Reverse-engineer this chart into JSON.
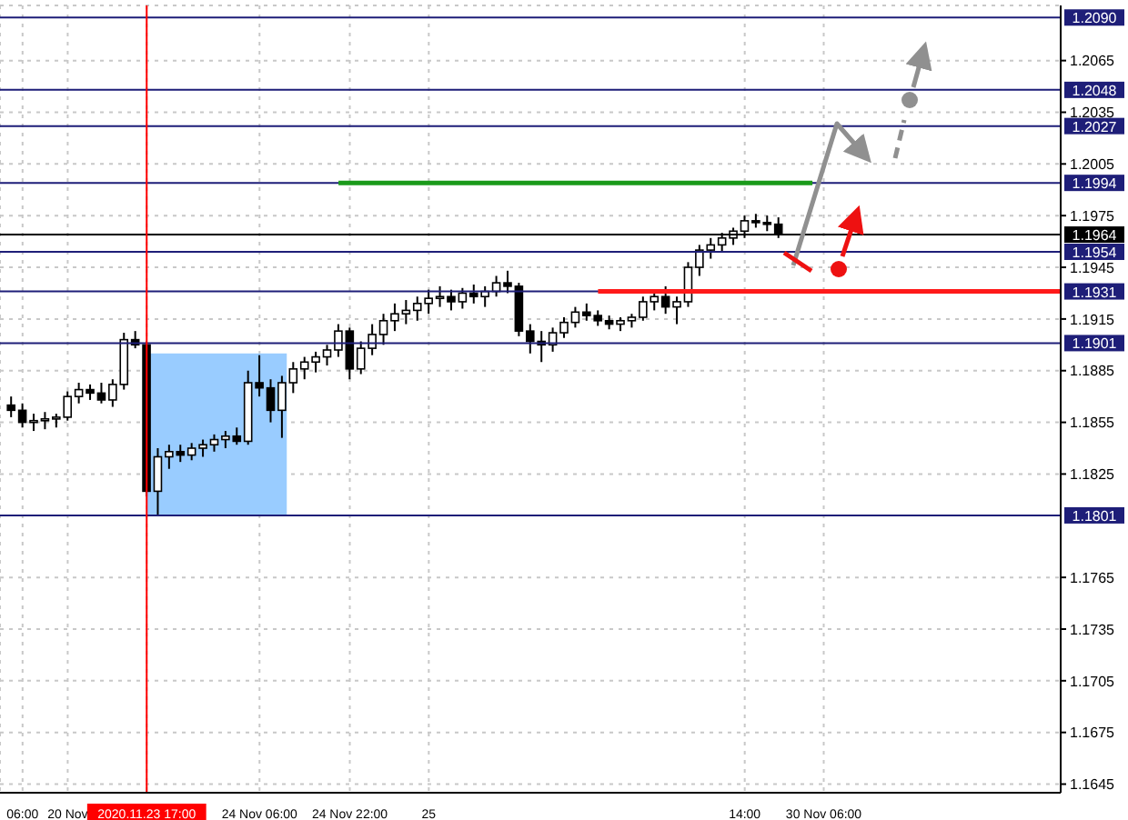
{
  "chart_data": {
    "type": "candlestick",
    "categories": [
      null,
      null,
      "06:00",
      null,
      null,
      null,
      "20 Nov",
      null,
      null,
      null,
      null,
      null,
      null,
      "2020.11.23 17:00",
      null,
      null,
      null,
      null,
      null,
      null,
      null,
      null,
      null,
      "24 Nov 06:00",
      null,
      null,
      null,
      null,
      null,
      null,
      null,
      "24 Nov 22:00",
      null,
      null,
      null,
      null,
      null,
      null,
      "25",
      null,
      null,
      null,
      null,
      null,
      null,
      null,
      null,
      null,
      null,
      null,
      null,
      null,
      null,
      null,
      null,
      null,
      null,
      null,
      null,
      null,
      null,
      null,
      null,
      null,
      null,
      null,
      "14:00",
      null,
      null,
      null,
      null,
      null,
      null,
      "30 Nov 06:00",
      null,
      null,
      null,
      null,
      null,
      null,
      null,
      null,
      null,
      null,
      null,
      null,
      null,
      null,
      null,
      null,
      null,
      null,
      null,
      null,
      null
    ],
    "series": [
      {
        "type": "candlestick",
        "color": "#000000",
        "ohlc": [
          null,
          [
            1.1865,
            1.187,
            1.1858,
            1.1862
          ],
          [
            1.1862,
            1.1866,
            1.1852,
            1.1855
          ],
          [
            1.1855,
            1.186,
            1.185,
            1.1856
          ],
          [
            1.1856,
            1.1861,
            1.1851,
            1.1857
          ],
          [
            1.1857,
            1.186,
            1.1852,
            1.1858
          ],
          [
            1.1858,
            1.1873,
            1.1856,
            1.187
          ],
          [
            1.187,
            1.1878,
            1.1866,
            1.1874
          ],
          [
            1.1874,
            1.1877,
            1.1868,
            1.1872
          ],
          [
            1.1872,
            1.1878,
            1.1866,
            1.1868
          ],
          [
            1.1868,
            1.188,
            1.1864,
            1.1877
          ],
          [
            1.1877,
            1.1907,
            1.1874,
            1.1903
          ],
          [
            1.1903,
            1.1908,
            1.1898,
            1.19
          ],
          [
            1.19,
            1.1902,
            1.1812,
            1.1815
          ],
          [
            1.1815,
            1.184,
            1.1801,
            1.1835
          ],
          [
            1.1835,
            1.1842,
            1.1828,
            1.1838
          ],
          [
            1.1838,
            1.1842,
            1.1832,
            1.1836
          ],
          [
            1.1836,
            1.1843,
            1.1833,
            1.184
          ],
          [
            1.184,
            1.1845,
            1.1835,
            1.1842
          ],
          [
            1.1842,
            1.1848,
            1.1838,
            1.1845
          ],
          [
            1.1845,
            1.185,
            1.184,
            1.1847
          ],
          [
            1.1847,
            1.1852,
            1.1842,
            1.1844
          ],
          [
            1.1844,
            1.1885,
            1.1842,
            1.1878
          ],
          [
            1.1878,
            1.1894,
            1.187,
            1.1875
          ],
          [
            1.1875,
            1.188,
            1.1855,
            1.1862
          ],
          [
            1.1862,
            1.1882,
            1.1846,
            1.1878
          ],
          [
            1.1878,
            1.189,
            1.1872,
            1.1886
          ],
          [
            1.1886,
            1.1893,
            1.188,
            1.189
          ],
          [
            1.189,
            1.1896,
            1.1884,
            1.1893
          ],
          [
            1.1893,
            1.19,
            1.1888,
            1.1897
          ],
          [
            1.1897,
            1.1912,
            1.1893,
            1.1908
          ],
          [
            1.1908,
            1.191,
            1.188,
            1.1886
          ],
          [
            1.1886,
            1.1902,
            1.1883,
            1.1898
          ],
          [
            1.1898,
            1.1912,
            1.1894,
            1.1906
          ],
          [
            1.1906,
            1.1918,
            1.19,
            1.1914
          ],
          [
            1.1914,
            1.1924,
            1.1908,
            1.1918
          ],
          [
            1.1918,
            1.1926,
            1.1912,
            1.192
          ],
          [
            1.192,
            1.1928,
            1.1914,
            1.1924
          ],
          [
            1.1924,
            1.1932,
            1.1918,
            1.1927
          ],
          [
            1.1927,
            1.1934,
            1.1922,
            1.1928
          ],
          [
            1.1928,
            1.1932,
            1.192,
            1.1925
          ],
          [
            1.1925,
            1.1933,
            1.1921,
            1.193
          ],
          [
            1.193,
            1.1935,
            1.1924,
            1.1928
          ],
          [
            1.1928,
            1.1934,
            1.1922,
            1.1931
          ],
          [
            1.1931,
            1.194,
            1.1928,
            1.1936
          ],
          [
            1.1936,
            1.1943,
            1.193,
            1.1934
          ],
          [
            1.1934,
            1.1936,
            1.1905,
            1.1908
          ],
          [
            1.1908,
            1.1912,
            1.1895,
            1.1902
          ],
          [
            1.1902,
            1.1908,
            1.189,
            1.19
          ],
          [
            1.19,
            1.191,
            1.1896,
            1.1907
          ],
          [
            1.1907,
            1.1916,
            1.1904,
            1.1913
          ],
          [
            1.1913,
            1.1922,
            1.191,
            1.1919
          ],
          [
            1.1919,
            1.1924,
            1.1914,
            1.1917
          ],
          [
            1.1917,
            1.192,
            1.1911,
            1.1914
          ],
          [
            1.1914,
            1.1917,
            1.1909,
            1.1912
          ],
          [
            1.1912,
            1.1916,
            1.1908,
            1.1914
          ],
          [
            1.1914,
            1.1918,
            1.191,
            1.1916
          ],
          [
            1.1916,
            1.1928,
            1.1914,
            1.1925
          ],
          [
            1.1925,
            1.1932,
            1.192,
            1.1928
          ],
          [
            1.1928,
            1.1934,
            1.1918,
            1.1922
          ],
          [
            1.1922,
            1.1928,
            1.1912,
            1.1925
          ],
          [
            1.1925,
            1.1948,
            1.1922,
            1.1945
          ],
          [
            1.1945,
            1.1958,
            1.194,
            1.1955
          ],
          [
            1.1955,
            1.1962,
            1.195,
            1.1958
          ],
          [
            1.1958,
            1.1965,
            1.1954,
            1.1962
          ],
          [
            1.1962,
            1.1968,
            1.1958,
            1.1966
          ],
          [
            1.1966,
            1.1975,
            1.1962,
            1.1972
          ],
          [
            1.1972,
            1.1976,
            1.1968,
            1.1971
          ],
          [
            1.1971,
            1.1975,
            1.1966,
            1.197
          ],
          [
            1.197,
            1.1974,
            1.1962,
            1.1964
          ],
          null,
          null,
          null,
          null,
          null,
          null,
          null,
          null,
          null,
          null,
          null,
          null,
          null,
          null,
          null,
          null,
          null,
          null,
          null,
          null,
          null,
          null,
          null,
          null,
          null
        ]
      },
      {
        "type": "line",
        "color": "#1a9a1a",
        "values": [
          null,
          null,
          null,
          null,
          null,
          null,
          null,
          null,
          null,
          null,
          null,
          null,
          null,
          null,
          null,
          null,
          null,
          null,
          null,
          null,
          null,
          null,
          null,
          null,
          null,
          null,
          null,
          null,
          null,
          null,
          1.1994,
          1.1994,
          1.1994,
          1.1994,
          1.1994,
          1.1994,
          1.1994,
          1.1994,
          1.1994,
          1.1994,
          1.1994,
          1.1994,
          1.1994,
          1.1994,
          1.1994,
          1.1994,
          1.1994,
          1.1994,
          1.1994,
          1.1994,
          1.1994,
          1.1994,
          1.1994,
          1.1994,
          1.1994,
          1.1994,
          1.1994,
          1.1994,
          1.1994,
          1.1994,
          1.1994,
          1.1994,
          1.1994,
          1.1994,
          1.1994,
          1.1994,
          1.1994,
          1.1994,
          1.1994,
          1.1994,
          1.1994,
          1.1994,
          1.1994,
          null,
          null,
          null,
          null,
          null,
          null,
          null,
          null,
          null,
          null,
          null,
          null,
          null,
          null,
          null,
          null,
          null,
          null,
          null,
          null,
          null,
          null
        ]
      },
      {
        "type": "line",
        "color": "#ff1a1a",
        "values": [
          null,
          null,
          null,
          null,
          null,
          null,
          null,
          null,
          null,
          null,
          null,
          null,
          null,
          null,
          null,
          null,
          null,
          null,
          null,
          null,
          null,
          null,
          null,
          null,
          null,
          null,
          null,
          null,
          null,
          null,
          null,
          null,
          null,
          null,
          null,
          null,
          null,
          null,
          null,
          null,
          null,
          null,
          null,
          null,
          null,
          null,
          null,
          null,
          null,
          null,
          null,
          null,
          null,
          1.1931,
          1.1931,
          1.1931,
          1.1931,
          1.1931,
          1.1931,
          1.1931,
          1.1931,
          1.1931,
          1.1931,
          1.1931,
          1.1931,
          1.1931,
          1.1931,
          1.1931,
          1.1931,
          1.1931,
          1.1931,
          1.1931,
          1.1931,
          1.1931,
          1.1931,
          1.1931,
          1.1931,
          1.1931,
          1.1931,
          1.1931,
          1.1931,
          1.1931,
          1.1931,
          1.1931,
          1.1931,
          1.1931,
          1.1931,
          1.1931,
          1.1931,
          1.1931,
          1.1931,
          1.1931,
          1.1931,
          1.1931,
          1.1931
        ]
      }
    ],
    "ylim": [
      1.164,
      1.2097
    ],
    "yticks": [
      1.1645,
      1.1675,
      1.1705,
      1.1735,
      1.1765,
      1.1825,
      1.1855,
      1.1885,
      1.1915,
      1.1945,
      1.1975,
      1.2005,
      1.2035,
      1.2065
    ],
    "grid": true,
    "ref_lines": [
      {
        "axis": "x",
        "value": "2020.11.23 17:00",
        "color": "#ff0000"
      },
      {
        "axis": "y",
        "value": 1.209,
        "label": "1.2090",
        "color": "#1e1e78"
      },
      {
        "axis": "y",
        "value": 1.2048,
        "label": "1.2048",
        "color": "#1e1e78"
      },
      {
        "axis": "y",
        "value": 1.2027,
        "label": "1.2027",
        "color": "#1e1e78"
      },
      {
        "axis": "y",
        "value": 1.1994,
        "label": "1.1994",
        "color": "#1e1e78"
      },
      {
        "axis": "y",
        "value": 1.1964,
        "label": "1.1964",
        "color": "#000000"
      },
      {
        "axis": "y",
        "value": 1.1954,
        "label": "1.1954",
        "color": "#1e1e78"
      },
      {
        "axis": "y",
        "value": 1.1931,
        "label": "1.1931",
        "color": "#1e1e78"
      },
      {
        "axis": "y",
        "value": 1.1901,
        "label": "1.1901",
        "color": "#1e1e78"
      },
      {
        "axis": "y",
        "value": 1.1801,
        "label": "1.1801",
        "color": "#1e1e78"
      }
    ],
    "bands": [
      {
        "axis": "y",
        "from": 1.1801,
        "to": 1.1895,
        "color": "#99ccff"
      }
    ]
  }
}
